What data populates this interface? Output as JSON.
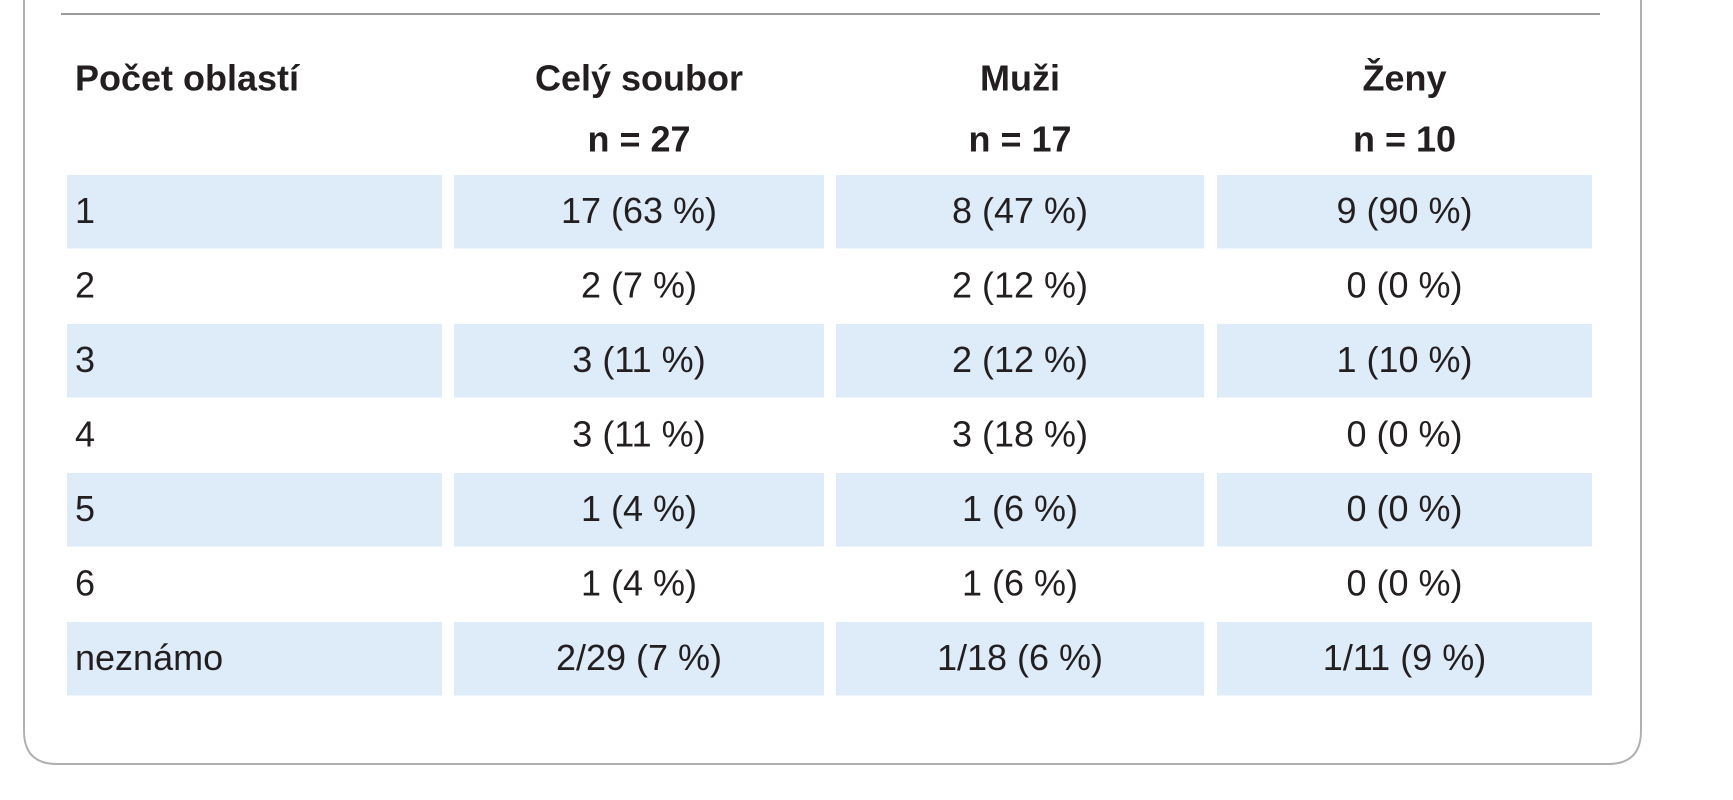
{
  "table": {
    "header": [
      [
        "Počet oblastí"
      ],
      [
        "Celý soubor",
        "n = 27"
      ],
      [
        "Muži",
        "n = 17"
      ],
      [
        "Ženy",
        "n = 10"
      ]
    ],
    "rows": [
      [
        "1",
        "17 (63 %)",
        "8 (47 %)",
        "9 (90 %)"
      ],
      [
        "2",
        "2 (7 %)",
        "2 (12 %)",
        "0 (0 %)"
      ],
      [
        "3",
        "3 (11 %)",
        "2 (12 %)",
        "1 (10 %)"
      ],
      [
        "4",
        "3 (11 %)",
        "3 (18 %)",
        "0 (0 %)"
      ],
      [
        "5",
        "1 (4 %)",
        "1 (6 %)",
        "0 (0 %)"
      ],
      [
        "6",
        "1 (4 %)",
        "1 (6 %)",
        "0 (0 %)"
      ],
      [
        "neznámo",
        "2/29 (7 %)",
        "1/18 (6 %)",
        "1/11 (9 %)"
      ]
    ]
  }
}
